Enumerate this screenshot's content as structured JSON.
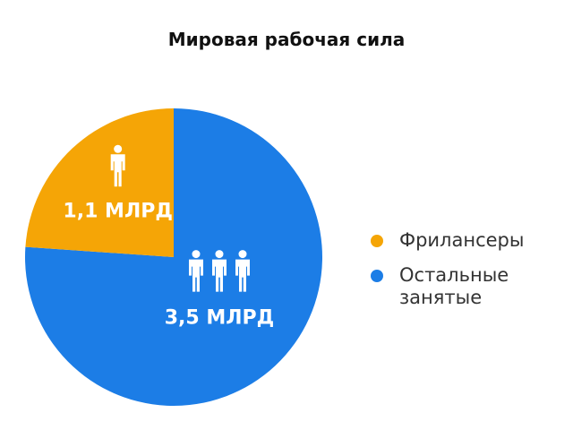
{
  "chart_data": {
    "type": "pie",
    "title": "Мировая рабочая сила",
    "series": [
      {
        "name": "Фрилансеры",
        "value": 1.1,
        "label": "1,1 МЛРД",
        "color": "#F5A506",
        "people_icons": 1
      },
      {
        "name": "Остальные занятые",
        "value": 3.5,
        "label": "3,5 МЛРД",
        "color": "#1C7DE6",
        "people_icons": 3
      }
    ],
    "legend_position": "right"
  }
}
